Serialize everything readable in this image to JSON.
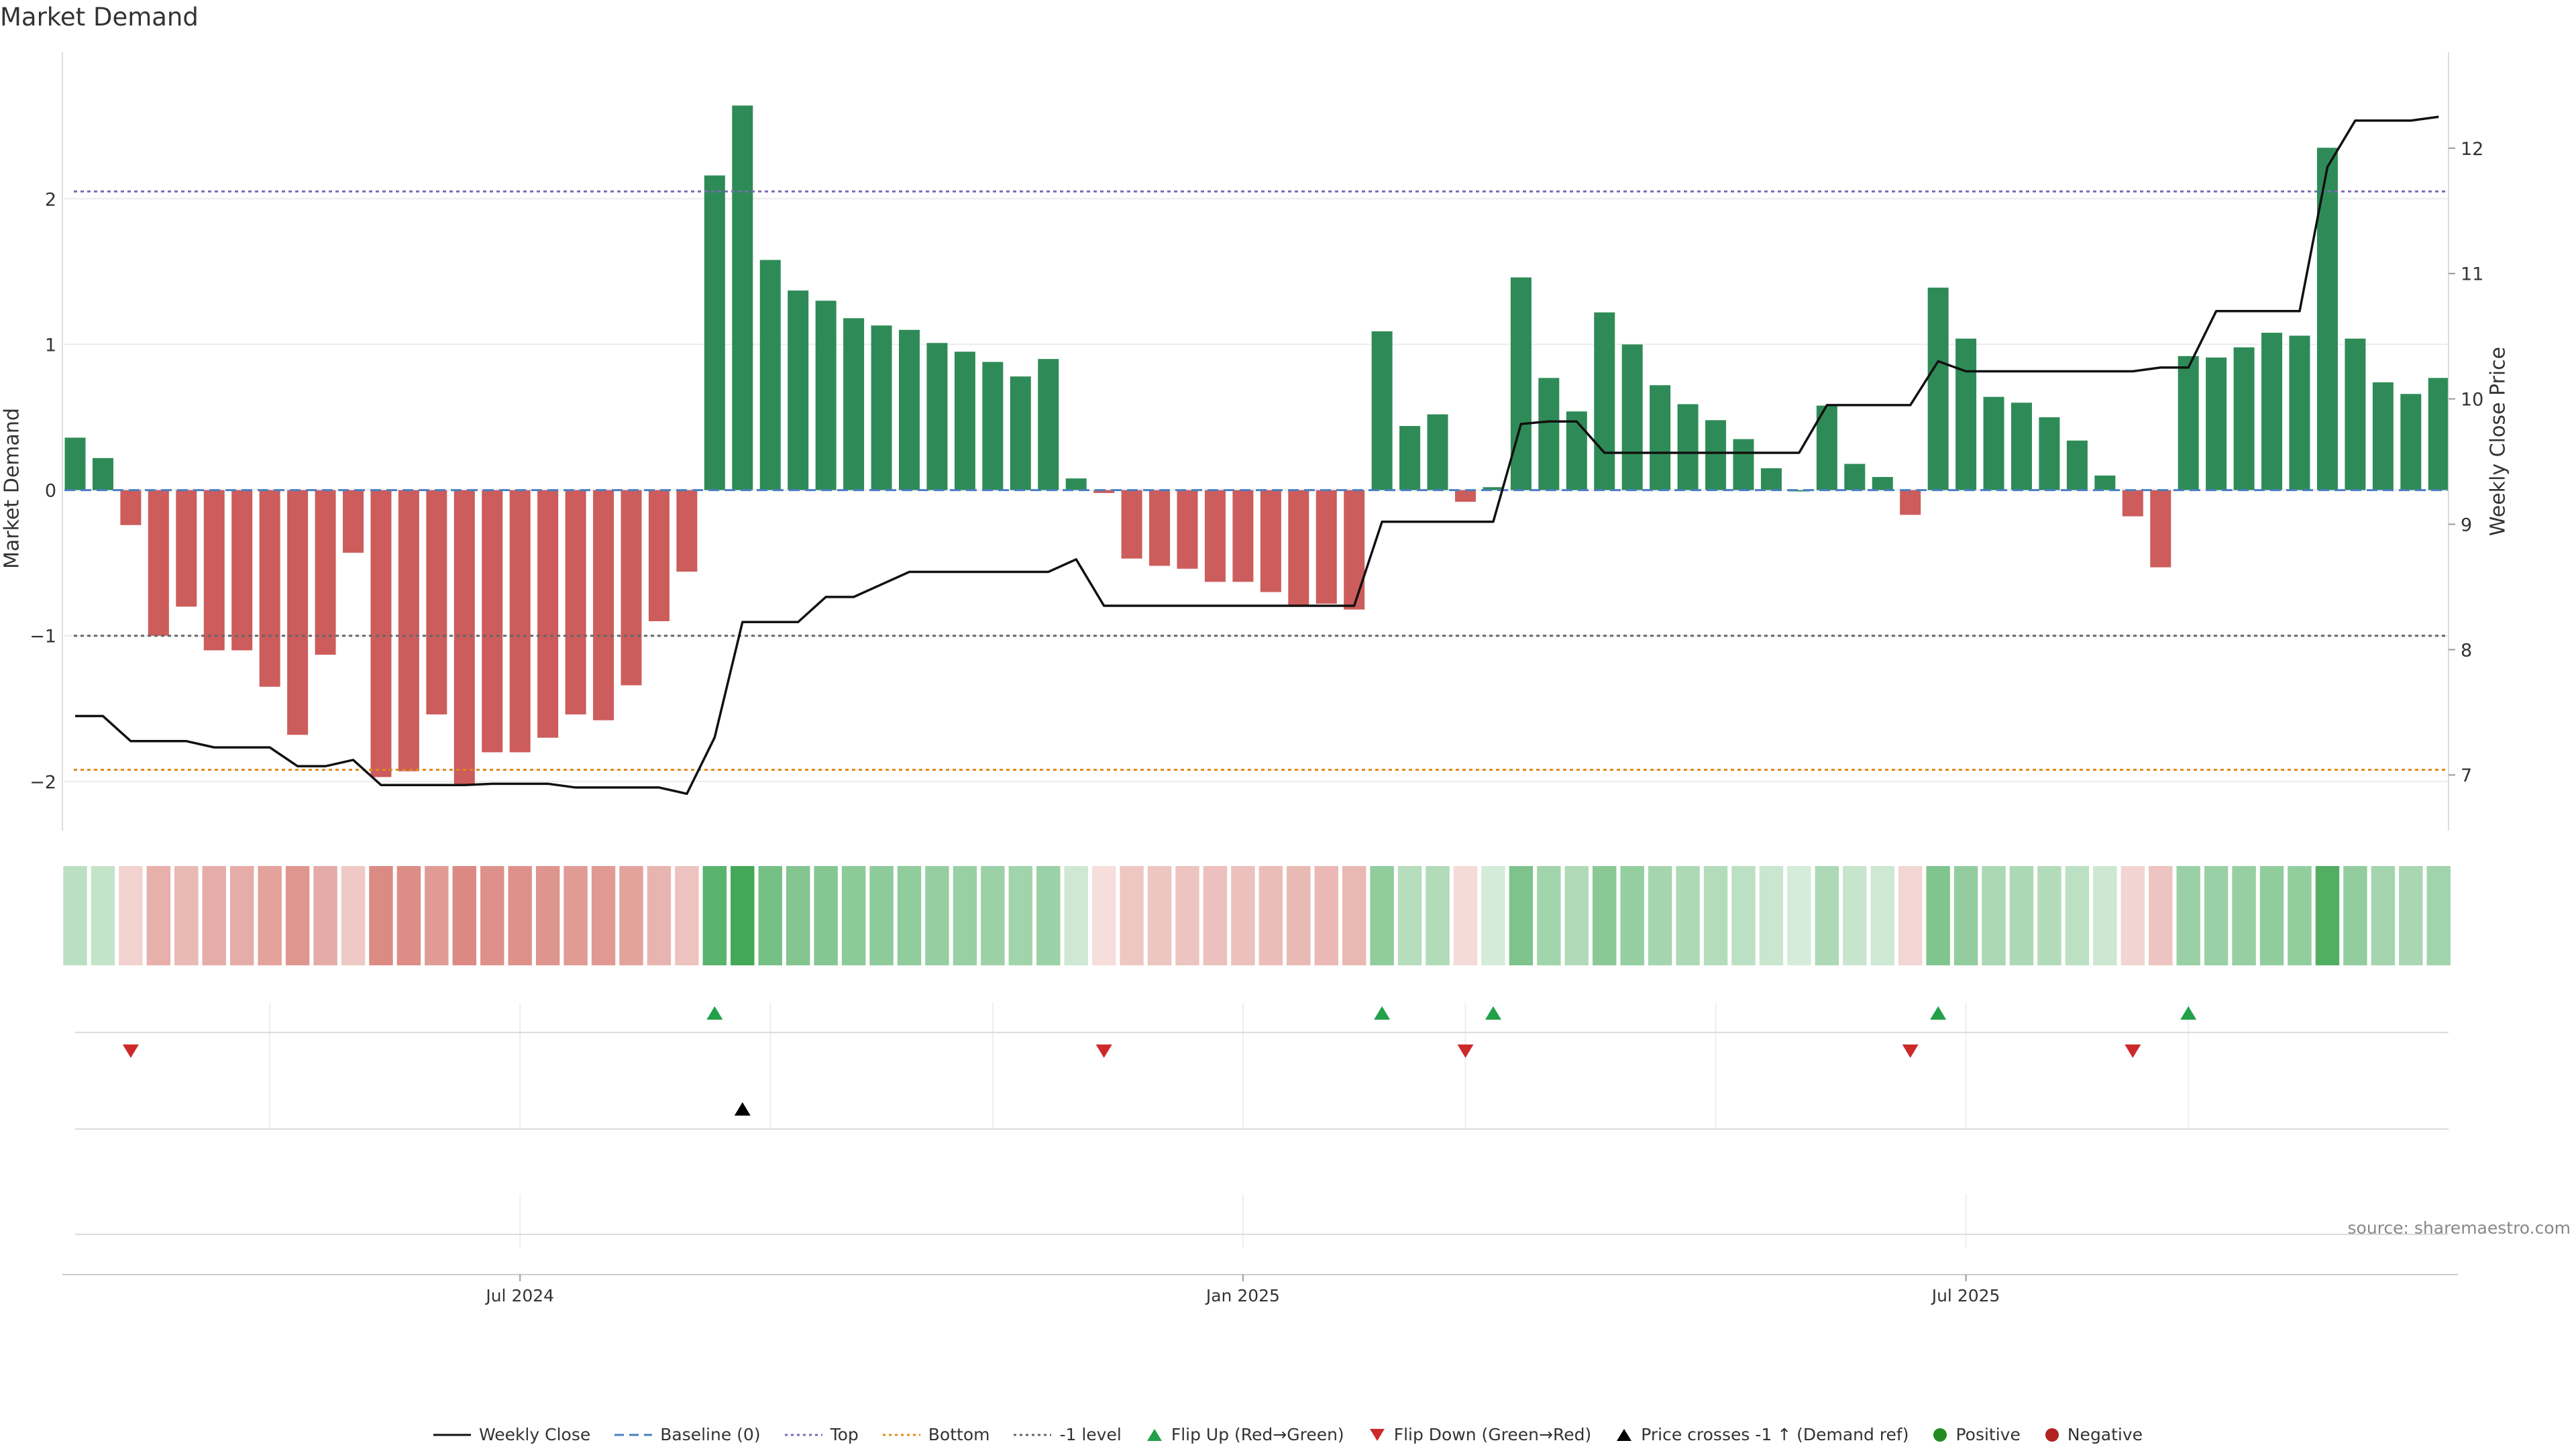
{
  "chart_data": {
    "type": "bar",
    "title": "Market Demand",
    "ylabel": "Market Demand",
    "y2label": "Weekly Close Price",
    "ylim": [
      -2.3,
      2.95
    ],
    "y2lim": [
      6.6,
      12.7
    ],
    "yticks": [
      "2",
      "1",
      "0",
      "−1",
      "−2"
    ],
    "ytick_values": [
      2,
      1,
      0,
      -1,
      -2
    ],
    "y2ticks": [
      "12",
      "11",
      "10",
      "9",
      "8",
      "7"
    ],
    "y2tick_values": [
      12,
      11,
      10,
      9,
      8,
      7
    ],
    "xticks": [
      {
        "label": "Jul 2024",
        "index": 16
      },
      {
        "label": "Jan 2025",
        "index": 42
      },
      {
        "label": "Jul 2025",
        "index": 68
      }
    ],
    "reference_lines": {
      "top": 2.05,
      "bottom": -1.92,
      "minus_one": -1.0,
      "baseline": 0
    },
    "demand": [
      0.36,
      0.22,
      -0.24,
      -1.0,
      -0.8,
      -1.1,
      -1.1,
      -1.35,
      -1.68,
      -1.13,
      -0.43,
      -1.97,
      -1.93,
      -1.54,
      -2.02,
      -1.8,
      -1.8,
      -1.7,
      -1.54,
      -1.58,
      -1.34,
      -0.9,
      -0.56,
      2.16,
      2.64,
      1.58,
      1.37,
      1.3,
      1.18,
      1.13,
      1.1,
      1.01,
      0.95,
      0.88,
      0.78,
      0.9,
      0.08,
      -0.02,
      -0.47,
      -0.52,
      -0.54,
      -0.63,
      -0.63,
      -0.7,
      -0.8,
      -0.78,
      -0.82,
      1.09,
      0.44,
      0.52,
      -0.08,
      0.02,
      1.46,
      0.77,
      0.54,
      1.22,
      1.0,
      0.72,
      0.59,
      0.48,
      0.35,
      0.15,
      0.0,
      0.58,
      0.18,
      0.09,
      -0.17,
      1.39,
      1.04,
      0.64,
      0.6,
      0.5,
      0.34,
      0.1,
      -0.18,
      -0.53,
      0.92,
      0.91,
      0.98,
      1.08,
      1.06,
      2.35,
      1.04,
      0.74,
      0.66,
      0.77
    ],
    "weekly_close": [
      7.47,
      7.47,
      7.27,
      7.27,
      7.27,
      7.22,
      7.22,
      7.22,
      7.07,
      7.07,
      7.12,
      6.92,
      6.92,
      6.92,
      6.92,
      6.93,
      6.93,
      6.93,
      6.9,
      6.9,
      6.9,
      6.9,
      6.85,
      7.3,
      8.22,
      8.22,
      8.22,
      8.42,
      8.42,
      8.52,
      8.62,
      8.62,
      8.62,
      8.62,
      8.62,
      8.62,
      8.72,
      8.35,
      8.35,
      8.35,
      8.35,
      8.35,
      8.35,
      8.35,
      8.35,
      8.35,
      8.35,
      9.02,
      9.02,
      9.02,
      9.02,
      9.02,
      9.8,
      9.82,
      9.82,
      9.57,
      9.57,
      9.57,
      9.57,
      9.57,
      9.57,
      9.57,
      9.57,
      9.95,
      9.95,
      9.95,
      9.95,
      10.3,
      10.22,
      10.22,
      10.22,
      10.22,
      10.22,
      10.22,
      10.22,
      10.25,
      10.25,
      10.7,
      10.7,
      10.7,
      10.7,
      11.85,
      12.22,
      12.22,
      12.22,
      12.25
    ],
    "events": {
      "flip_up": [
        23,
        47,
        51,
        67,
        76
      ],
      "flip_down": [
        2,
        37,
        50,
        66,
        74
      ],
      "price_cross": [
        24
      ]
    },
    "legend": [
      {
        "key": "weekly-close",
        "label": "Weekly Close"
      },
      {
        "key": "baseline",
        "label": "Baseline (0)"
      },
      {
        "key": "top",
        "label": "Top"
      },
      {
        "key": "bottom",
        "label": "Bottom"
      },
      {
        "key": "minus-one",
        "label": "-1 level"
      },
      {
        "key": "flip-up",
        "label": "Flip Up (Red→Green)"
      },
      {
        "key": "flip-down",
        "label": "Flip Down (Green→Red)"
      },
      {
        "key": "price-cross",
        "label": "Price crosses -1 ↑ (Demand ref)"
      },
      {
        "key": "positive",
        "label": "Positive"
      },
      {
        "key": "negative",
        "label": "Negative"
      }
    ],
    "colors": {
      "positive": "#2e8b57",
      "negative": "#cd5c5c",
      "price": "#111111",
      "baseline": "#4a7fc1",
      "top": "#7b6bb8",
      "bottom": "#e08a1e",
      "minus_one": "#666666",
      "flip_up": "#22a04a",
      "flip_down": "#cc2a2a",
      "price_cross": "#000000",
      "legend_positive": "#228b22",
      "legend_negative": "#b22222"
    }
  },
  "source": "source: sharemaestro.com"
}
